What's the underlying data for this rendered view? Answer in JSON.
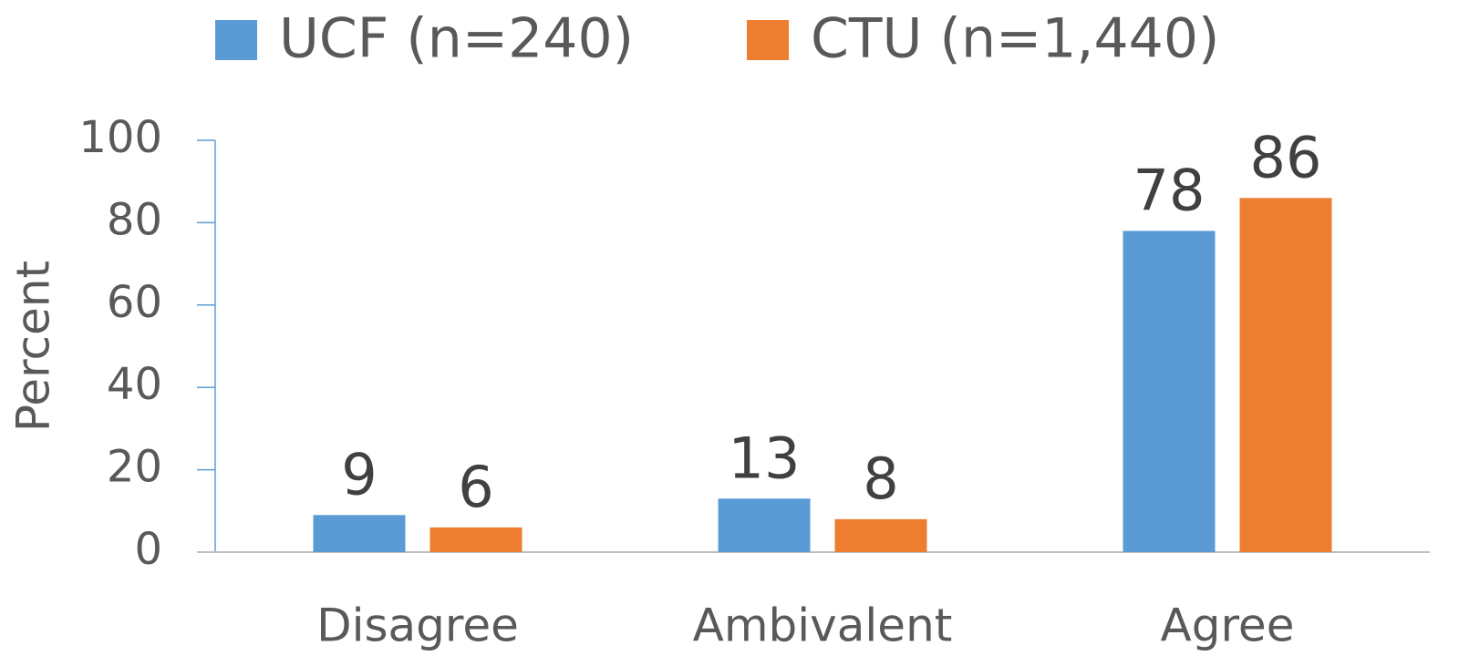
{
  "chart_data": {
    "type": "bar",
    "categories": [
      "Disagree",
      "Ambivalent",
      "Agree"
    ],
    "series": [
      {
        "name": "UCF (n=240)",
        "color": "#5b9bd5",
        "values": [
          9,
          13,
          78
        ]
      },
      {
        "name": "CTU (n=1,440)",
        "color": "#ed7d31",
        "values": [
          6,
          8,
          86
        ]
      }
    ],
    "y_label": "Percent",
    "ylim": [
      0,
      100
    ],
    "yticks": [
      0,
      20,
      40,
      60,
      80,
      100
    ],
    "grid": false,
    "legend": "top"
  }
}
